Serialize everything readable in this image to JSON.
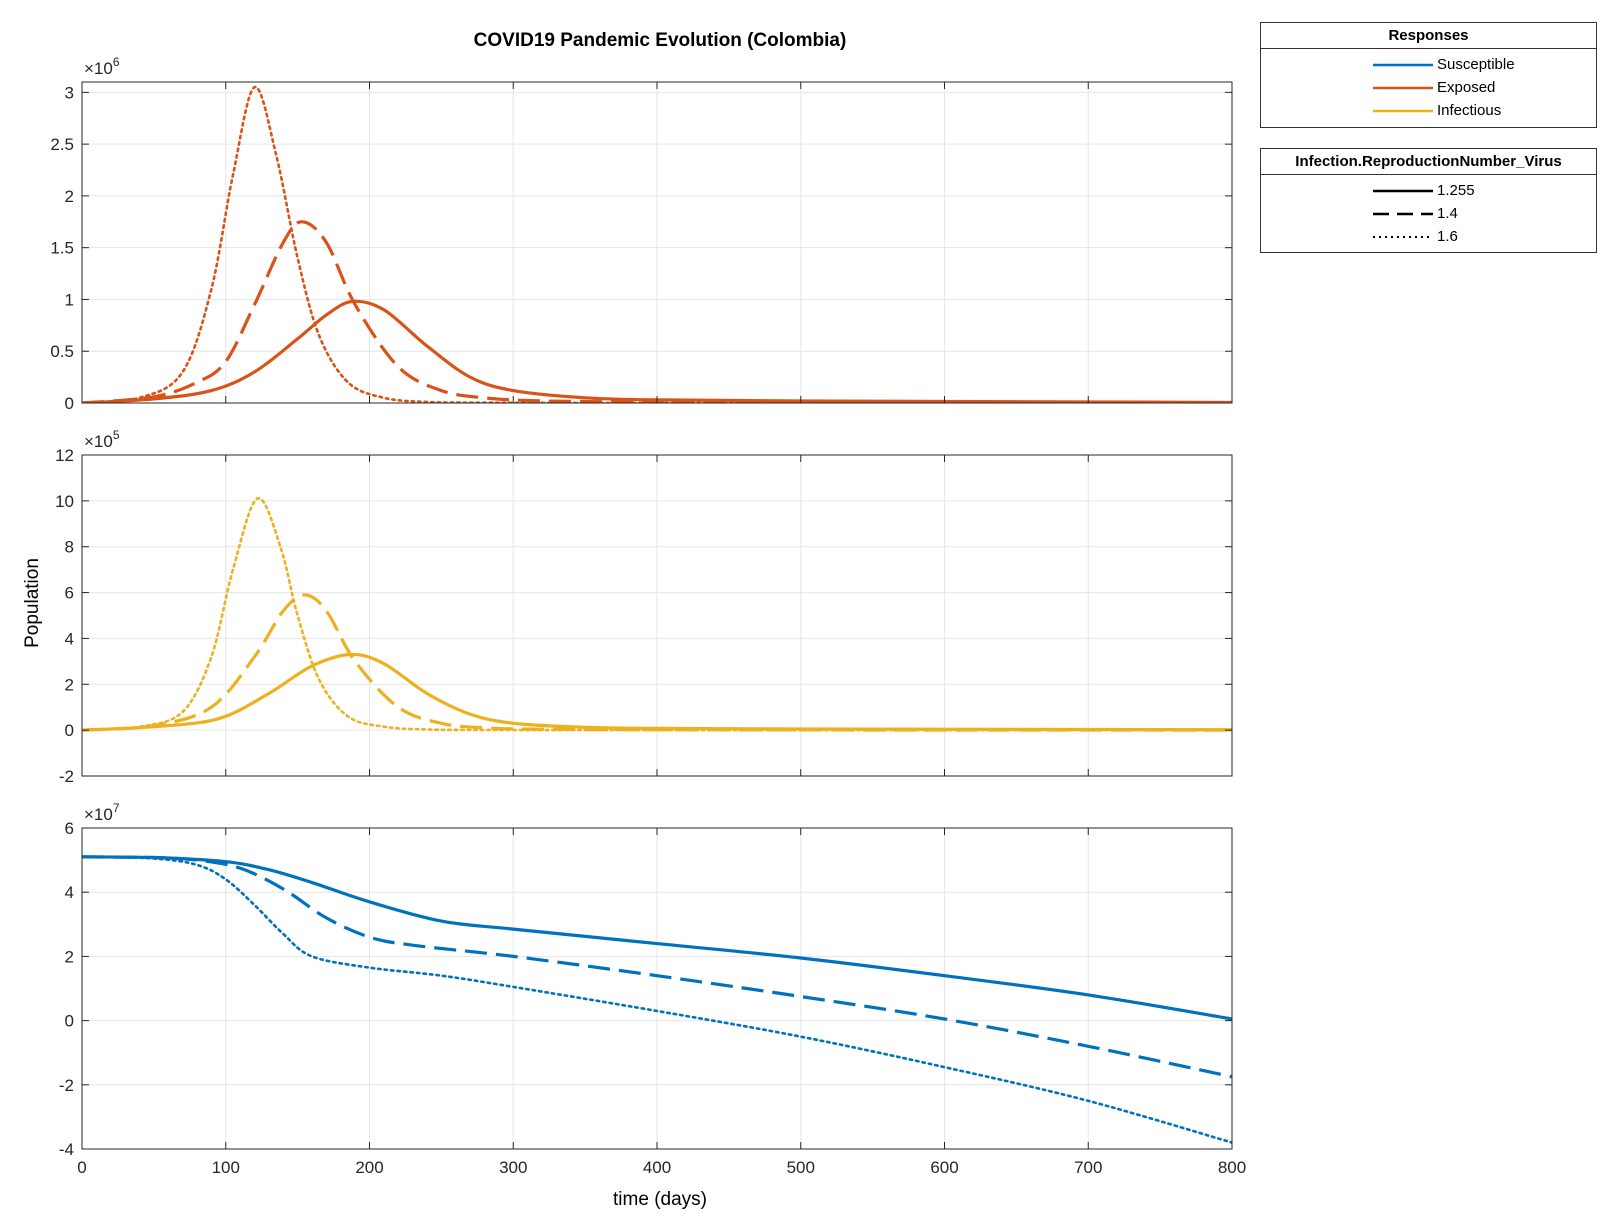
{
  "colors": {
    "susceptible": "#0072BD",
    "exposed": "#D95319",
    "infectious": "#EDB120"
  },
  "title": "COVID19 Pandemic Evolution (Colombia)",
  "ylabel": "Population",
  "xlabel": "time (days)",
  "legend_responses": {
    "title": "Responses",
    "items": [
      {
        "label": "Susceptible",
        "color": "#0072BD"
      },
      {
        "label": "Exposed",
        "color": "#D95319"
      },
      {
        "label": "Infectious",
        "color": "#EDB120"
      }
    ]
  },
  "legend_r0": {
    "title": "Infection.ReproductionNumber_Virus",
    "items": [
      {
        "label": "1.255",
        "style": "solid"
      },
      {
        "label": "1.4",
        "style": "dashed"
      },
      {
        "label": "1.6",
        "style": "dotted"
      }
    ]
  },
  "chart_data": [
    {
      "type": "line",
      "panel": "exposed",
      "ylim": [
        0,
        3.1
      ],
      "yticks": [
        0,
        0.5,
        1,
        1.5,
        2,
        2.5,
        3
      ],
      "ytick_labels": [
        "0",
        "0.5",
        "1",
        "1.5",
        "2",
        "2.5",
        "3"
      ],
      "exponent_base": "×10",
      "exponent": "6",
      "xlim": [
        0,
        800
      ],
      "xticks": [
        0,
        100,
        200,
        300,
        400,
        500,
        600,
        700,
        800
      ],
      "grid": true,
      "series": [
        {
          "name": "Exposed",
          "r0": "1.255",
          "color": "#D95319",
          "style": "solid",
          "x": [
            0,
            50,
            90,
            120,
            150,
            170,
            188,
            210,
            240,
            270,
            300,
            350,
            400,
            500,
            600,
            700,
            800
          ],
          "y": [
            0,
            0.04,
            0.12,
            0.3,
            0.62,
            0.85,
            0.98,
            0.9,
            0.55,
            0.25,
            0.12,
            0.05,
            0.03,
            0.02,
            0.015,
            0.01,
            0.005
          ]
        },
        {
          "name": "Exposed",
          "r0": "1.4",
          "color": "#D95319",
          "style": "dashed",
          "x": [
            0,
            50,
            80,
            100,
            120,
            140,
            153,
            170,
            190,
            220,
            250,
            280,
            320,
            400,
            500,
            600,
            700,
            800
          ],
          "y": [
            0,
            0.06,
            0.2,
            0.4,
            0.95,
            1.55,
            1.75,
            1.55,
            0.95,
            0.35,
            0.12,
            0.05,
            0.02,
            0.01,
            0.005,
            0.003,
            0.002,
            0.001
          ]
        },
        {
          "name": "Exposed",
          "r0": "1.6",
          "color": "#D95319",
          "style": "dotted",
          "x": [
            0,
            40,
            70,
            90,
            105,
            120,
            135,
            150,
            165,
            185,
            210,
            240,
            280,
            350,
            500,
            800
          ],
          "y": [
            0,
            0.05,
            0.3,
            1.1,
            2.2,
            3.05,
            2.4,
            1.4,
            0.65,
            0.2,
            0.05,
            0.01,
            0.003,
            0.001,
            0.0005,
            0.0003
          ]
        }
      ]
    },
    {
      "type": "line",
      "panel": "infectious",
      "ylim": [
        -2,
        12
      ],
      "yticks": [
        -2,
        0,
        2,
        4,
        6,
        8,
        10,
        12
      ],
      "ytick_labels": [
        "-2",
        "0",
        "2",
        "4",
        "6",
        "8",
        "10",
        "12"
      ],
      "exponent_base": "×10",
      "exponent": "5",
      "xlim": [
        0,
        800
      ],
      "xticks": [
        0,
        100,
        200,
        300,
        400,
        500,
        600,
        700,
        800
      ],
      "grid": true,
      "series": [
        {
          "name": "Infectious",
          "r0": "1.255",
          "color": "#EDB120",
          "style": "solid",
          "x": [
            0,
            50,
            95,
            130,
            160,
            187,
            210,
            240,
            270,
            300,
            350,
            400,
            500,
            600,
            700,
            800
          ],
          "y": [
            0,
            0.15,
            0.5,
            1.6,
            2.8,
            3.3,
            2.9,
            1.6,
            0.7,
            0.3,
            0.12,
            0.08,
            0.05,
            0.04,
            0.03,
            0.02
          ]
        },
        {
          "name": "Infectious",
          "r0": "1.4",
          "color": "#EDB120",
          "style": "dashed",
          "x": [
            0,
            50,
            90,
            120,
            140,
            155,
            170,
            190,
            220,
            250,
            280,
            320,
            400,
            500,
            600,
            700,
            800
          ],
          "y": [
            0,
            0.2,
            1.0,
            3.2,
            5.2,
            5.9,
            5.2,
            3.0,
            1.0,
            0.3,
            0.1,
            0.04,
            0.02,
            0.01,
            0.005,
            0.003,
            0.002
          ]
        },
        {
          "name": "Infectious",
          "r0": "1.6",
          "color": "#EDB120",
          "style": "dotted",
          "x": [
            0,
            40,
            70,
            90,
            105,
            122,
            138,
            150,
            165,
            185,
            210,
            240,
            280,
            350,
            500,
            800
          ],
          "y": [
            0,
            0.15,
            0.8,
            3.2,
            7.0,
            10.1,
            8.0,
            5.0,
            2.2,
            0.6,
            0.15,
            0.03,
            0.01,
            0.003,
            0.001,
            0.0005
          ]
        }
      ]
    },
    {
      "type": "line",
      "panel": "susceptible",
      "ylim": [
        -4,
        6
      ],
      "yticks": [
        -4,
        -2,
        0,
        2,
        4,
        6
      ],
      "ytick_labels": [
        "-4",
        "-2",
        "0",
        "2",
        "4",
        "6"
      ],
      "exponent_base": "×10",
      "exponent": "7",
      "xlim": [
        0,
        800
      ],
      "xticks": [
        0,
        100,
        200,
        300,
        400,
        500,
        600,
        700,
        800
      ],
      "xtick_labels": [
        "0",
        "100",
        "200",
        "300",
        "400",
        "500",
        "600",
        "700",
        "800"
      ],
      "grid": true,
      "series": [
        {
          "name": "Susceptible",
          "r0": "1.255",
          "color": "#0072BD",
          "style": "solid",
          "x": [
            0,
            50,
            100,
            130,
            160,
            200,
            250,
            300,
            400,
            500,
            600,
            700,
            800
          ],
          "y": [
            5.1,
            5.08,
            4.95,
            4.7,
            4.3,
            3.7,
            3.1,
            2.85,
            2.4,
            1.95,
            1.4,
            0.8,
            0.05
          ]
        },
        {
          "name": "Susceptible",
          "r0": "1.4",
          "color": "#0072BD",
          "style": "dashed",
          "x": [
            0,
            50,
            80,
            110,
            140,
            170,
            200,
            230,
            300,
            400,
            500,
            600,
            700,
            800
          ],
          "y": [
            5.1,
            5.08,
            5.0,
            4.75,
            4.1,
            3.2,
            2.6,
            2.35,
            2.0,
            1.4,
            0.75,
            0.05,
            -0.8,
            -1.75
          ]
        },
        {
          "name": "Susceptible",
          "r0": "1.6",
          "color": "#0072BD",
          "style": "dotted",
          "x": [
            0,
            50,
            80,
            100,
            120,
            140,
            160,
            200,
            250,
            300,
            400,
            500,
            600,
            700,
            800
          ],
          "y": [
            5.1,
            5.05,
            4.85,
            4.4,
            3.6,
            2.7,
            2.0,
            1.65,
            1.4,
            1.05,
            0.3,
            -0.5,
            -1.45,
            -2.5,
            -3.8
          ]
        }
      ]
    }
  ]
}
